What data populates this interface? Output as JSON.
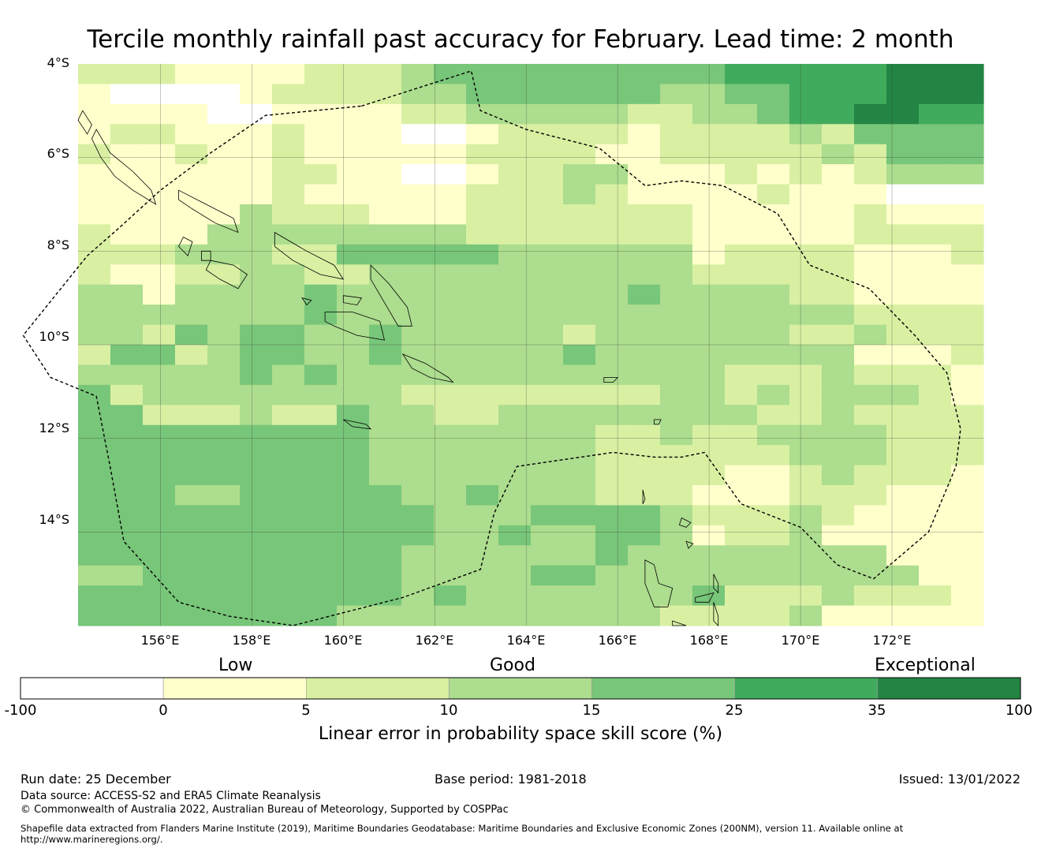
{
  "title": "Tercile monthly rainfall past accuracy for February. Lead time: 2 month",
  "map": {
    "lon_range": [
      154.2,
      174.0
    ],
    "lat_range": [
      -16.0,
      -4.0
    ],
    "lat_ticks": [
      {
        "value": -4,
        "label": "4°S"
      },
      {
        "value": -6,
        "label": "6°S"
      },
      {
        "value": -8,
        "label": "8°S"
      },
      {
        "value": -10,
        "label": "10°S"
      },
      {
        "value": -12,
        "label": "12°S"
      },
      {
        "value": -14,
        "label": "14°S"
      }
    ],
    "lon_ticks": [
      {
        "value": 156,
        "label": "156°E"
      },
      {
        "value": 158,
        "label": "158°E"
      },
      {
        "value": 160,
        "label": "160°E"
      },
      {
        "value": 162,
        "label": "162°E"
      },
      {
        "value": 164,
        "label": "164°E"
      },
      {
        "value": 166,
        "label": "166°E"
      },
      {
        "value": 168,
        "label": "168°E"
      },
      {
        "value": 170,
        "label": "170°E"
      },
      {
        "value": 172,
        "label": "172°E"
      }
    ],
    "grid_note": "skill category per cell: 0 = below 0, 1 = 0-5, 2 = 5-10, 3 = 10-15, 4 = 15-25, 5 = 25-35, 6 = 35-100",
    "grid": [
      "2221111222344444444455555666",
      "1000012222334444443344555666",
      "1111001111223333322334556655",
      "1221112111001222212222324444",
      "2112112111112222112222232444",
      "1111112211001223311121212333",
      "1111112111112223211112111000",
      "1111132221112222222111112111",
      "2111333333332222222111112222",
      "2223332244444333333122221112",
      "2112233223333333333222221111",
      "3313333433333333343333221111",
      "3333333433333333333333332222",
      "3324344334333332333333223222",
      "2442344334333334333333331112",
      "3333343433333333333322232221",
      "4233333333222222223323233321",
      "4422232243322333333332232222",
      "4444444443333333223223333222",
      "4444444443333333222222333222",
      "4444444443333333222211232221",
      "4443344444334333222111222111",
      "4444444444433344443222321111",
      "4444444444433433443122311111",
      "4444444444333333433333333111",
      "3344444444333344333333333311",
      "4444444444343333333422232221",
      "4444444433333333332222311111"
    ],
    "colors": [
      "#ffffff",
      "#ffffcc",
      "#d9f0a3",
      "#addd8e",
      "#78c679",
      "#41ab5d",
      "#238443"
    ],
    "eez_boundary": [
      [
        160.4,
        -4.9
      ],
      [
        162.8,
        -4.15
      ],
      [
        163.0,
        -5.0
      ],
      [
        164.0,
        -5.4
      ],
      [
        165.6,
        -5.8
      ],
      [
        166.6,
        -6.6
      ],
      [
        167.4,
        -6.5
      ],
      [
        168.3,
        -6.6
      ],
      [
        169.5,
        -7.2
      ],
      [
        170.2,
        -8.3
      ],
      [
        171.5,
        -8.8
      ],
      [
        172.5,
        -9.8
      ],
      [
        173.2,
        -10.6
      ],
      [
        173.5,
        -11.8
      ],
      [
        173.4,
        -12.6
      ],
      [
        172.8,
        -14.0
      ],
      [
        171.6,
        -15.0
      ],
      [
        170.8,
        -14.7
      ],
      [
        170.0,
        -13.9
      ],
      [
        168.7,
        -13.4
      ],
      [
        167.9,
        -12.3
      ],
      [
        167.4,
        -12.4
      ],
      [
        166.8,
        -12.4
      ],
      [
        165.9,
        -12.3
      ],
      [
        164.5,
        -12.5
      ],
      [
        163.8,
        -12.6
      ],
      [
        163.3,
        -13.6
      ],
      [
        163.0,
        -14.8
      ],
      [
        161.3,
        -15.4
      ],
      [
        158.9,
        -16.0
      ],
      [
        157.5,
        -15.8
      ],
      [
        156.4,
        -15.5
      ],
      [
        155.2,
        -14.2
      ],
      [
        154.9,
        -12.6
      ],
      [
        154.6,
        -11.1
      ],
      [
        153.6,
        -10.7
      ],
      [
        153.0,
        -9.8
      ],
      [
        154.4,
        -8.1
      ],
      [
        155.1,
        -7.5
      ],
      [
        156.0,
        -6.7
      ],
      [
        157.1,
        -5.9
      ],
      [
        158.3,
        -5.1
      ],
      [
        160.4,
        -4.9
      ]
    ],
    "coastlines": [
      {
        "name": "bougainville",
        "points": [
          [
            154.6,
            -5.4
          ],
          [
            154.9,
            -5.9
          ],
          [
            155.4,
            -6.3
          ],
          [
            155.8,
            -6.7
          ],
          [
            155.9,
            -7.0
          ],
          [
            155.4,
            -6.7
          ],
          [
            155.0,
            -6.4
          ],
          [
            154.7,
            -6.0
          ],
          [
            154.5,
            -5.6
          ]
        ]
      },
      {
        "name": "buka",
        "points": [
          [
            154.3,
            -5.0
          ],
          [
            154.5,
            -5.3
          ],
          [
            154.4,
            -5.5
          ],
          [
            154.2,
            -5.2
          ]
        ]
      },
      {
        "name": "choiseul",
        "points": [
          [
            156.4,
            -6.7
          ],
          [
            157.0,
            -7.0
          ],
          [
            157.6,
            -7.3
          ],
          [
            157.7,
            -7.6
          ],
          [
            157.2,
            -7.4
          ],
          [
            156.7,
            -7.1
          ],
          [
            156.4,
            -6.9
          ]
        ]
      },
      {
        "name": "santa-isabel",
        "points": [
          [
            158.5,
            -7.6
          ],
          [
            159.2,
            -8.0
          ],
          [
            159.8,
            -8.3
          ],
          [
            160.0,
            -8.6
          ],
          [
            159.5,
            -8.5
          ],
          [
            158.9,
            -8.2
          ],
          [
            158.5,
            -7.9
          ]
        ]
      },
      {
        "name": "new-georgia",
        "points": [
          [
            157.1,
            -8.2
          ],
          [
            157.6,
            -8.3
          ],
          [
            157.9,
            -8.5
          ],
          [
            157.7,
            -8.8
          ],
          [
            157.3,
            -8.6
          ],
          [
            157.0,
            -8.4
          ]
        ]
      },
      {
        "name": "vella-lavella",
        "points": [
          [
            156.5,
            -7.7
          ],
          [
            156.7,
            -7.8
          ],
          [
            156.6,
            -8.1
          ],
          [
            156.4,
            -7.9
          ]
        ]
      },
      {
        "name": "kolombangara",
        "points": [
          [
            156.9,
            -8.0
          ],
          [
            157.1,
            -8.0
          ],
          [
            157.1,
            -8.2
          ],
          [
            156.9,
            -8.2
          ]
        ]
      },
      {
        "name": "malaita",
        "points": [
          [
            160.6,
            -8.3
          ],
          [
            161.0,
            -8.7
          ],
          [
            161.4,
            -9.2
          ],
          [
            161.5,
            -9.6
          ],
          [
            161.2,
            -9.6
          ],
          [
            160.9,
            -9.1
          ],
          [
            160.6,
            -8.6
          ]
        ]
      },
      {
        "name": "guadalcanal",
        "points": [
          [
            159.6,
            -9.3
          ],
          [
            160.2,
            -9.3
          ],
          [
            160.8,
            -9.5
          ],
          [
            160.9,
            -9.9
          ],
          [
            160.3,
            -9.8
          ],
          [
            159.8,
            -9.6
          ],
          [
            159.6,
            -9.5
          ]
        ]
      },
      {
        "name": "nggela",
        "points": [
          [
            160.0,
            -8.95
          ],
          [
            160.4,
            -9.0
          ],
          [
            160.3,
            -9.15
          ],
          [
            160.0,
            -9.1
          ]
        ]
      },
      {
        "name": "russell",
        "points": [
          [
            159.1,
            -9.0
          ],
          [
            159.3,
            -9.05
          ],
          [
            159.2,
            -9.15
          ]
        ]
      },
      {
        "name": "makira",
        "points": [
          [
            161.3,
            -10.2
          ],
          [
            161.8,
            -10.4
          ],
          [
            162.3,
            -10.7
          ],
          [
            162.4,
            -10.8
          ],
          [
            161.9,
            -10.7
          ],
          [
            161.5,
            -10.5
          ]
        ]
      },
      {
        "name": "rennell",
        "points": [
          [
            160.0,
            -11.6
          ],
          [
            160.5,
            -11.7
          ],
          [
            160.6,
            -11.8
          ],
          [
            160.2,
            -11.75
          ]
        ]
      },
      {
        "name": "nendo",
        "points": [
          [
            165.7,
            -10.7
          ],
          [
            166.0,
            -10.7
          ],
          [
            165.9,
            -10.8
          ],
          [
            165.7,
            -10.8
          ]
        ]
      },
      {
        "name": "vanikoro",
        "points": [
          [
            166.8,
            -11.6
          ],
          [
            166.95,
            -11.6
          ],
          [
            166.9,
            -11.7
          ],
          [
            166.8,
            -11.7
          ]
        ]
      },
      {
        "name": "espiritu-santo",
        "points": [
          [
            166.6,
            -14.6
          ],
          [
            166.8,
            -14.7
          ],
          [
            166.9,
            -15.1
          ],
          [
            167.2,
            -15.2
          ],
          [
            167.1,
            -15.6
          ],
          [
            166.8,
            -15.6
          ],
          [
            166.6,
            -15.1
          ]
        ]
      },
      {
        "name": "malekula",
        "points": [
          [
            167.2,
            -15.9
          ],
          [
            167.5,
            -16.0
          ],
          [
            167.4,
            -16.0
          ],
          [
            167.2,
            -16.0
          ]
        ]
      },
      {
        "name": "ambae",
        "points": [
          [
            167.7,
            -15.4
          ],
          [
            168.1,
            -15.3
          ],
          [
            168.0,
            -15.5
          ],
          [
            167.7,
            -15.5
          ]
        ]
      },
      {
        "name": "pentecost",
        "points": [
          [
            168.1,
            -15.5
          ],
          [
            168.2,
            -15.8
          ],
          [
            168.2,
            -16.0
          ],
          [
            168.1,
            -15.9
          ]
        ]
      },
      {
        "name": "maewo",
        "points": [
          [
            168.1,
            -14.9
          ],
          [
            168.2,
            -15.1
          ],
          [
            168.2,
            -15.3
          ],
          [
            168.1,
            -15.2
          ]
        ]
      },
      {
        "name": "vanua-lava",
        "points": [
          [
            167.4,
            -13.7
          ],
          [
            167.6,
            -13.8
          ],
          [
            167.5,
            -13.9
          ],
          [
            167.35,
            -13.85
          ]
        ]
      },
      {
        "name": "gaua",
        "points": [
          [
            167.5,
            -14.2
          ],
          [
            167.65,
            -14.25
          ],
          [
            167.55,
            -14.35
          ]
        ]
      },
      {
        "name": "torres",
        "points": [
          [
            166.55,
            -13.1
          ],
          [
            166.6,
            -13.3
          ],
          [
            166.55,
            -13.4
          ]
        ]
      }
    ]
  },
  "colorbar": {
    "categories": [
      {
        "label": "Low"
      },
      {
        "label": "Good"
      },
      {
        "label": "Exceptional"
      }
    ],
    "ticks": [
      "-100",
      "0",
      "5",
      "10",
      "15",
      "25",
      "35",
      "100"
    ],
    "label": "Linear error in probability space skill score (%)"
  },
  "footer": {
    "run_date": "Run date: 25 December",
    "base_period": "Base period: 1981-2018",
    "issued": "Issued: 13/01/2022",
    "data_source": "Data source: ACCESS-S2 and ERA5 Climate Reanalysis",
    "copyright": "© Commonwealth of Australia 2022, Australian Bureau of Meteorology, Supported by COSPPac",
    "shapefile_line1": "Shapefile data extracted from Flanders Marine Institute (2019), Maritime Boundaries Geodatabase: Maritime Boundaries and Exclusive Economic Zones (200NM), version 11. Available online at",
    "shapefile_line2": "http://www.marineregions.org/."
  }
}
